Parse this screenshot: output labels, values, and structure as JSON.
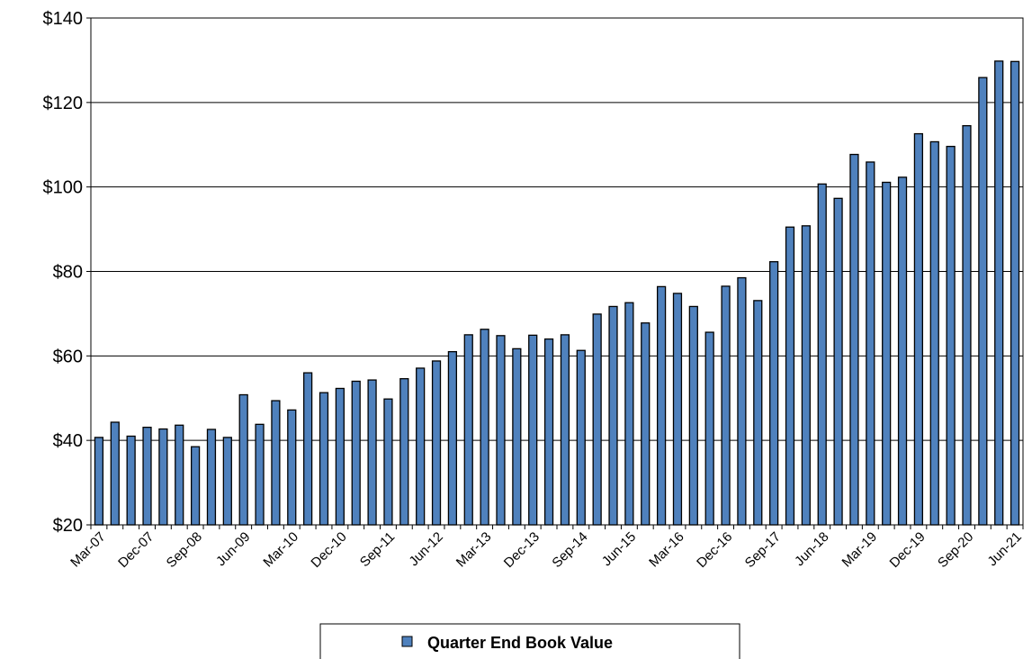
{
  "chart_data": {
    "type": "bar",
    "title": "",
    "xlabel": "",
    "ylabel": "",
    "ylim": [
      20,
      140
    ],
    "y_ticks": [
      "$20",
      "$40",
      "$60",
      "$80",
      "$100",
      "$120",
      "$140"
    ],
    "y_tick_values": [
      20,
      40,
      60,
      80,
      100,
      120,
      140
    ],
    "grid": "horizontal",
    "legend_position": "bottom",
    "bar_color": "#4F81BD",
    "categories": [
      "Mar-07",
      "Jun-07",
      "Sep-07",
      "Dec-07",
      "Mar-08",
      "Jun-08",
      "Sep-08",
      "Dec-08",
      "Mar-09",
      "Jun-09",
      "Sep-09",
      "Dec-09",
      "Mar-10",
      "Jun-10",
      "Sep-10",
      "Dec-10",
      "Mar-11",
      "Jun-11",
      "Sep-11",
      "Dec-11",
      "Mar-12",
      "Jun-12",
      "Sep-12",
      "Dec-12",
      "Mar-13",
      "Jun-13",
      "Sep-13",
      "Dec-13",
      "Mar-14",
      "Jun-14",
      "Sep-14",
      "Dec-14",
      "Mar-15",
      "Jun-15",
      "Sep-15",
      "Dec-15",
      "Mar-16",
      "Jun-16",
      "Sep-16",
      "Dec-16",
      "Mar-17",
      "Jun-17",
      "Sep-17",
      "Dec-17",
      "Mar-18",
      "Jun-18",
      "Sep-18",
      "Dec-18",
      "Mar-19",
      "Jun-19",
      "Sep-19",
      "Dec-19",
      "Mar-20",
      "Jun-20",
      "Sep-20",
      "Dec-20",
      "Mar-21",
      "Jun-21"
    ],
    "x_tick_labels": [
      "Mar-07",
      "Dec-07",
      "Sep-08",
      "Jun-09",
      "Mar-10",
      "Dec-10",
      "Sep-11",
      "Jun-12",
      "Mar-13",
      "Dec-13",
      "Sep-14",
      "Jun-15",
      "Mar-16",
      "Dec-16",
      "Sep-17",
      "Jun-18",
      "Mar-19",
      "Dec-19",
      "Sep-20",
      "Jun-21"
    ],
    "series": [
      {
        "name": "Quarter End Book Value",
        "values": [
          40.7,
          44.3,
          41.0,
          43.1,
          42.7,
          43.6,
          38.5,
          42.6,
          40.7,
          50.8,
          43.8,
          49.4,
          47.2,
          56.0,
          51.3,
          52.3,
          54.0,
          54.3,
          49.8,
          54.6,
          57.1,
          58.8,
          61.0,
          65.0,
          66.3,
          64.8,
          61.7,
          64.9,
          64.0,
          65.0,
          61.3,
          69.9,
          71.7,
          72.6,
          67.8,
          76.4,
          74.8,
          71.7,
          65.6,
          76.5,
          78.5,
          73.1,
          82.3,
          90.5,
          90.8,
          100.7,
          97.3,
          107.7,
          105.9,
          101.1,
          102.3,
          112.6,
          110.7,
          109.6,
          114.5,
          125.9,
          129.8,
          129.7
        ]
      }
    ]
  }
}
